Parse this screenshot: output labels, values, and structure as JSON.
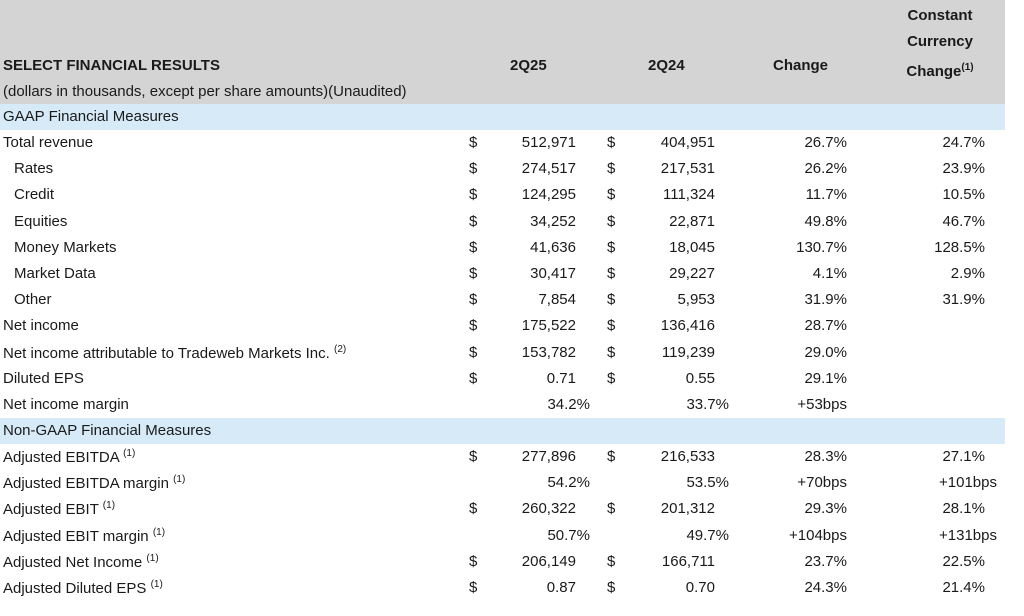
{
  "header": {
    "title": "SELECT FINANCIAL RESULTS",
    "subtitle": "(dollars in thousands, except per share amounts)(Unaudited)",
    "col_current": "2Q25",
    "col_prior": "2Q24",
    "col_change": "Change",
    "col_cc_line1": "Constant",
    "col_cc_line2": "Currency",
    "col_cc_line3": "Change",
    "col_cc_footnote": "(1)"
  },
  "sections": [
    {
      "title": "GAAP Financial Measures",
      "rows": [
        {
          "label": "Total revenue",
          "note": "",
          "indent": false,
          "dollar1": "$",
          "current": "512,971",
          "dollar2": "$",
          "prior": "404,951",
          "change": "26.7%",
          "cc": "24.7%"
        },
        {
          "label": "Rates",
          "note": "",
          "indent": true,
          "dollar1": "$",
          "current": "274,517",
          "dollar2": "$",
          "prior": "217,531",
          "change": "26.2%",
          "cc": "23.9%"
        },
        {
          "label": "Credit",
          "note": "",
          "indent": true,
          "dollar1": "$",
          "current": "124,295",
          "dollar2": "$",
          "prior": "111,324",
          "change": "11.7%",
          "cc": "10.5%"
        },
        {
          "label": "Equities",
          "note": "",
          "indent": true,
          "dollar1": "$",
          "current": "34,252",
          "dollar2": "$",
          "prior": "22,871",
          "change": "49.8%",
          "cc": "46.7%"
        },
        {
          "label": "Money Markets",
          "note": "",
          "indent": true,
          "dollar1": "$",
          "current": "41,636",
          "dollar2": "$",
          "prior": "18,045",
          "change": "130.7%",
          "cc": "128.5%"
        },
        {
          "label": "Market Data",
          "note": "",
          "indent": true,
          "dollar1": "$",
          "current": "30,417",
          "dollar2": "$",
          "prior": "29,227",
          "change": "4.1%",
          "cc": "2.9%"
        },
        {
          "label": "Other",
          "note": "",
          "indent": true,
          "dollar1": "$",
          "current": "7,854",
          "dollar2": "$",
          "prior": "5,953",
          "change": "31.9%",
          "cc": "31.9%"
        },
        {
          "label": "Net income",
          "note": "",
          "indent": false,
          "dollar1": "$",
          "current": "175,522",
          "dollar2": "$",
          "prior": "136,416",
          "change": "28.7%",
          "cc": ""
        },
        {
          "label": "Net income attributable to Tradeweb Markets Inc.",
          "note": "(2)",
          "indent": false,
          "dollar1": "$",
          "current": "153,782",
          "dollar2": "$",
          "prior": "119,239",
          "change": "29.0%",
          "cc": ""
        },
        {
          "label": "Diluted EPS",
          "note": "",
          "indent": false,
          "dollar1": "$",
          "current": "0.71",
          "dollar2": "$",
          "prior": "0.55",
          "change": "29.1%",
          "cc": ""
        },
        {
          "label": "Net income margin",
          "note": "",
          "indent": false,
          "dollar1": "",
          "current": "34.2%",
          "dollar2": "",
          "prior": "33.7%",
          "change": "+53bps",
          "cc": ""
        }
      ]
    },
    {
      "title": "Non-GAAP Financial Measures",
      "rows": [
        {
          "label": "Adjusted EBITDA",
          "note": "(1)",
          "indent": false,
          "dollar1": "$",
          "current": "277,896",
          "dollar2": "$",
          "prior": "216,533",
          "change": "28.3%",
          "cc": "27.1%"
        },
        {
          "label": "Adjusted EBITDA margin",
          "note": "(1)",
          "indent": false,
          "dollar1": "",
          "current": "54.2%",
          "dollar2": "",
          "prior": "53.5%",
          "change": "+70bps",
          "cc": "+101bps"
        },
        {
          "label": "Adjusted EBIT",
          "note": "(1)",
          "indent": false,
          "dollar1": "$",
          "current": "260,322",
          "dollar2": "$",
          "prior": "201,312",
          "change": "29.3%",
          "cc": "28.1%"
        },
        {
          "label": "Adjusted EBIT margin",
          "note": "(1)",
          "indent": false,
          "dollar1": "",
          "current": "50.7%",
          "dollar2": "",
          "prior": "49.7%",
          "change": "+104bps",
          "cc": "+131bps"
        },
        {
          "label": "Adjusted Net Income",
          "note": "(1)",
          "indent": false,
          "dollar1": "$",
          "current": "206,149",
          "dollar2": "$",
          "prior": "166,711",
          "change": "23.7%",
          "cc": "22.5%"
        },
        {
          "label": "Adjusted Diluted EPS",
          "note": "(1)",
          "indent": false,
          "dollar1": "$",
          "current": "0.87",
          "dollar2": "$",
          "prior": "0.70",
          "change": "24.3%",
          "cc": "21.4%"
        }
      ]
    }
  ]
}
